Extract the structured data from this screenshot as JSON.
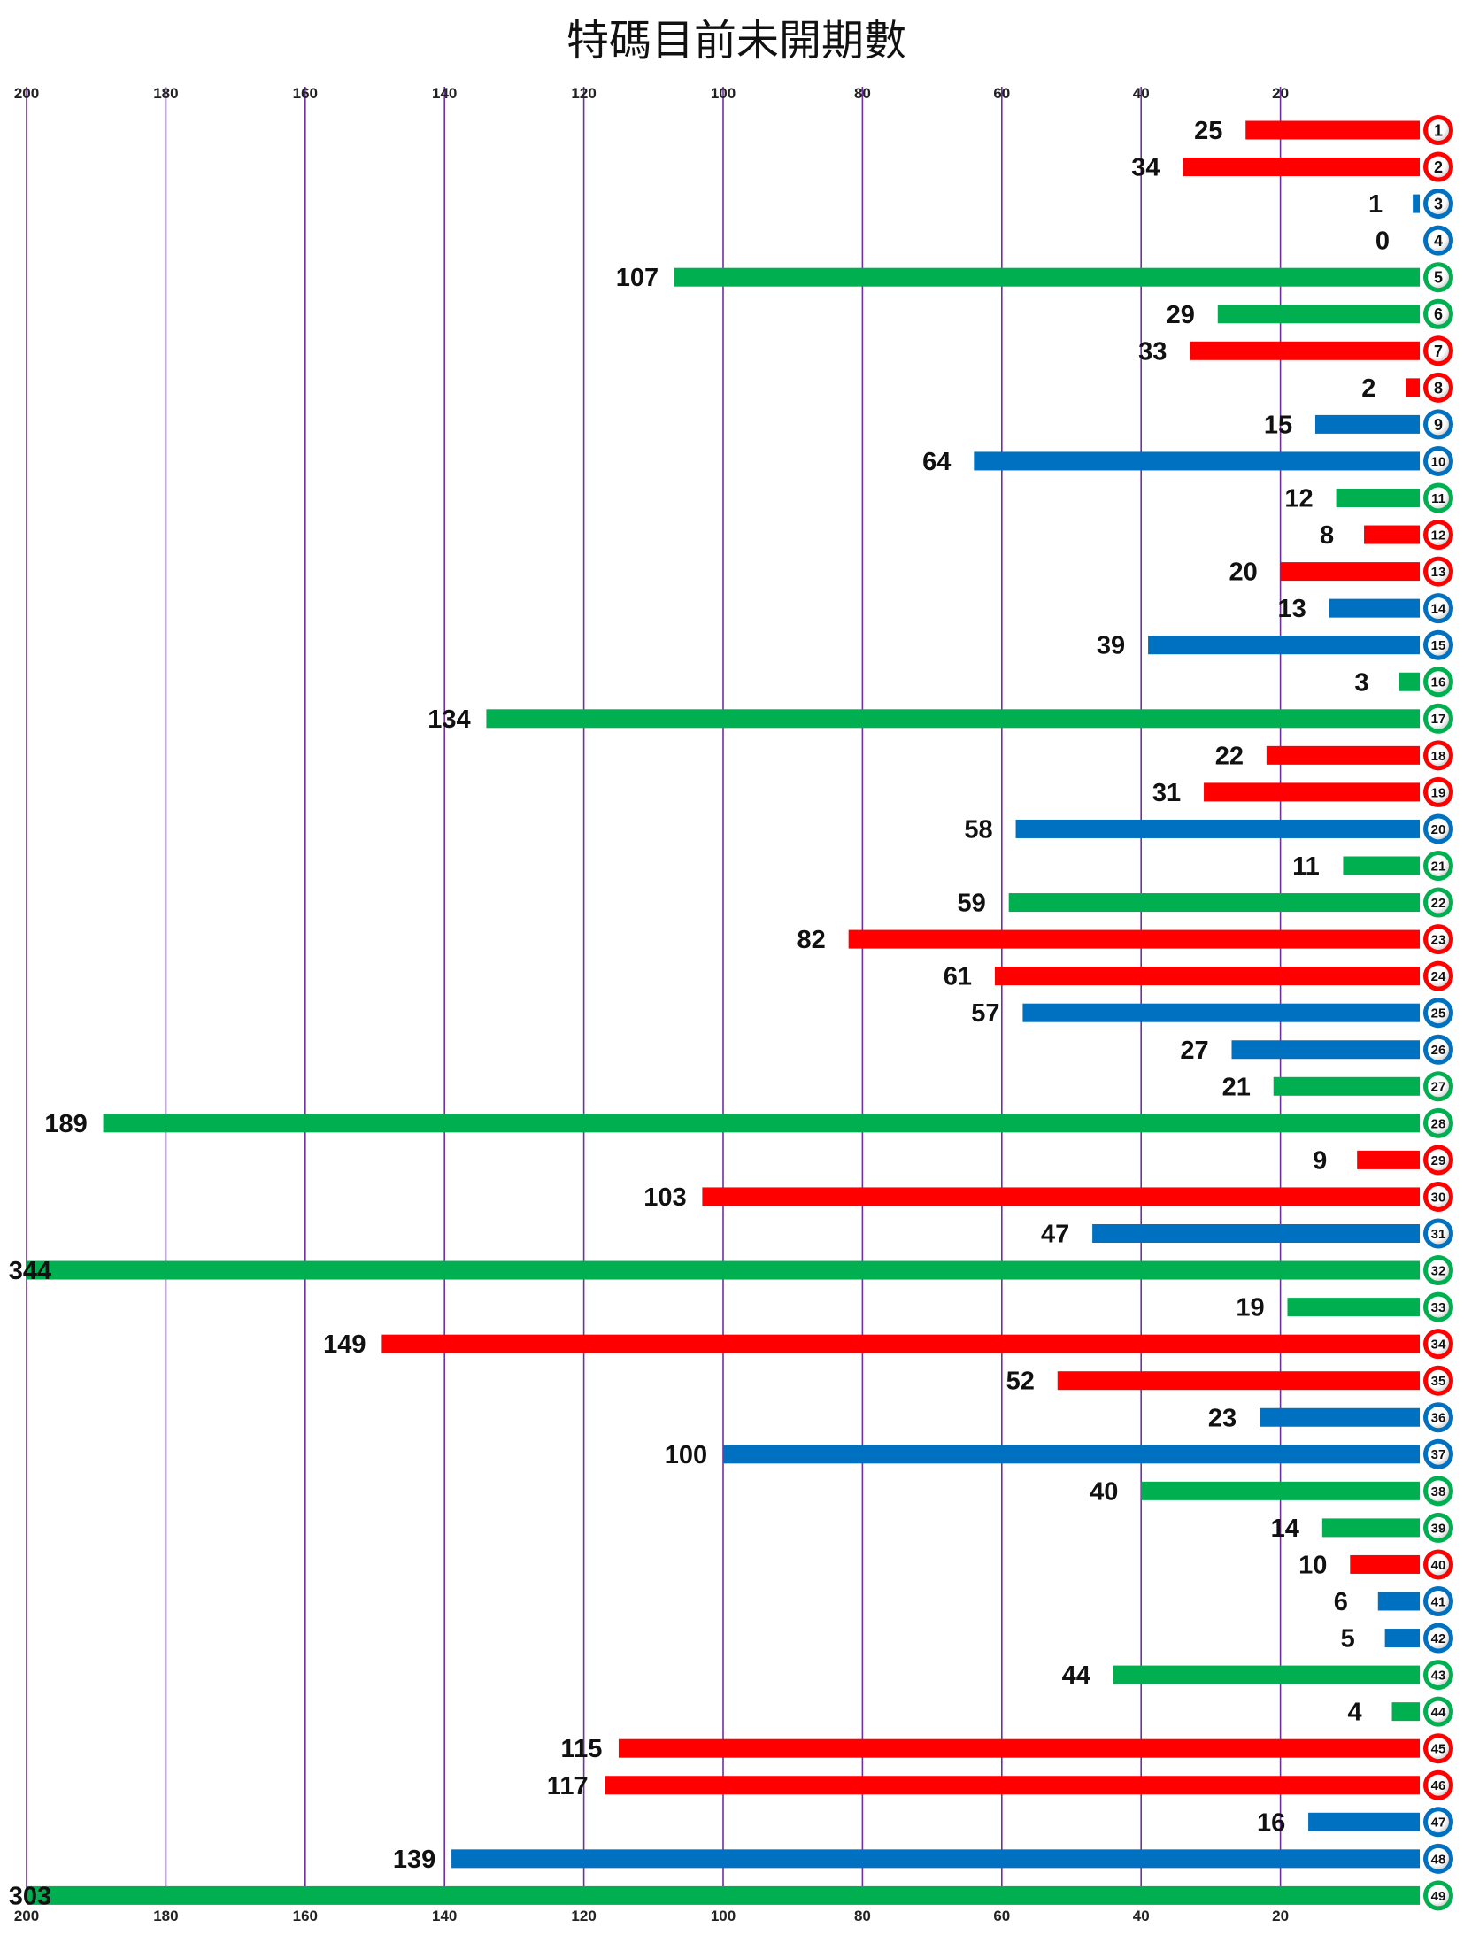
{
  "chart_data": {
    "type": "bar",
    "orientation": "horizontal",
    "title": "特碼目前未開期數",
    "xlim": [
      0,
      200
    ],
    "x_reversed": true,
    "x_ticks": [
      200,
      180,
      160,
      140,
      120,
      100,
      80,
      60,
      40,
      20
    ],
    "x_tick_labels": [
      "200",
      "180",
      "160",
      "140",
      "120",
      "100",
      "80",
      "60",
      "40",
      "20"
    ],
    "grid": "vertical",
    "colors": {
      "red": "#ff0000",
      "blue": "#0070c0",
      "green": "#00b050"
    },
    "categories": [
      "1",
      "2",
      "3",
      "4",
      "5",
      "6",
      "7",
      "8",
      "9",
      "10",
      "11",
      "12",
      "13",
      "14",
      "15",
      "16",
      "17",
      "18",
      "19",
      "20",
      "21",
      "22",
      "23",
      "24",
      "25",
      "26",
      "27",
      "28",
      "29",
      "30",
      "31",
      "32",
      "33",
      "34",
      "35",
      "36",
      "37",
      "38",
      "39",
      "40",
      "41",
      "42",
      "43",
      "44",
      "45",
      "46",
      "47",
      "48",
      "49"
    ],
    "values": [
      25,
      34,
      1,
      0,
      107,
      29,
      33,
      2,
      15,
      64,
      12,
      8,
      20,
      13,
      39,
      3,
      134,
      22,
      31,
      58,
      11,
      59,
      82,
      61,
      57,
      27,
      21,
      189,
      9,
      103,
      47,
      344,
      19,
      149,
      52,
      23,
      100,
      40,
      14,
      10,
      6,
      5,
      44,
      4,
      115,
      117,
      16,
      139,
      303
    ],
    "value_labels": [
      "25",
      "34",
      "1",
      "0",
      "107",
      "29",
      "33",
      "2",
      "15",
      "64",
      "12",
      "8",
      "20",
      "13",
      "39",
      "3",
      "134",
      "22",
      "31",
      "58",
      "11",
      "59",
      "82",
      "61",
      "57",
      "27",
      "21",
      "189",
      "9",
      "103",
      "47",
      "344",
      "19",
      "149",
      "52",
      "23",
      "100",
      "40",
      "14",
      "10",
      "6",
      "5",
      "44",
      "4",
      "115",
      "117",
      "16",
      "139",
      "303"
    ],
    "bar_colors": [
      "red",
      "red",
      "blue",
      "blue",
      "green",
      "green",
      "red",
      "red",
      "blue",
      "blue",
      "green",
      "red",
      "red",
      "blue",
      "blue",
      "green",
      "green",
      "red",
      "red",
      "blue",
      "green",
      "green",
      "red",
      "red",
      "blue",
      "blue",
      "green",
      "green",
      "red",
      "red",
      "blue",
      "green",
      "green",
      "red",
      "red",
      "blue",
      "blue",
      "green",
      "green",
      "red",
      "blue",
      "blue",
      "green",
      "green",
      "red",
      "red",
      "blue",
      "blue",
      "green"
    ]
  }
}
